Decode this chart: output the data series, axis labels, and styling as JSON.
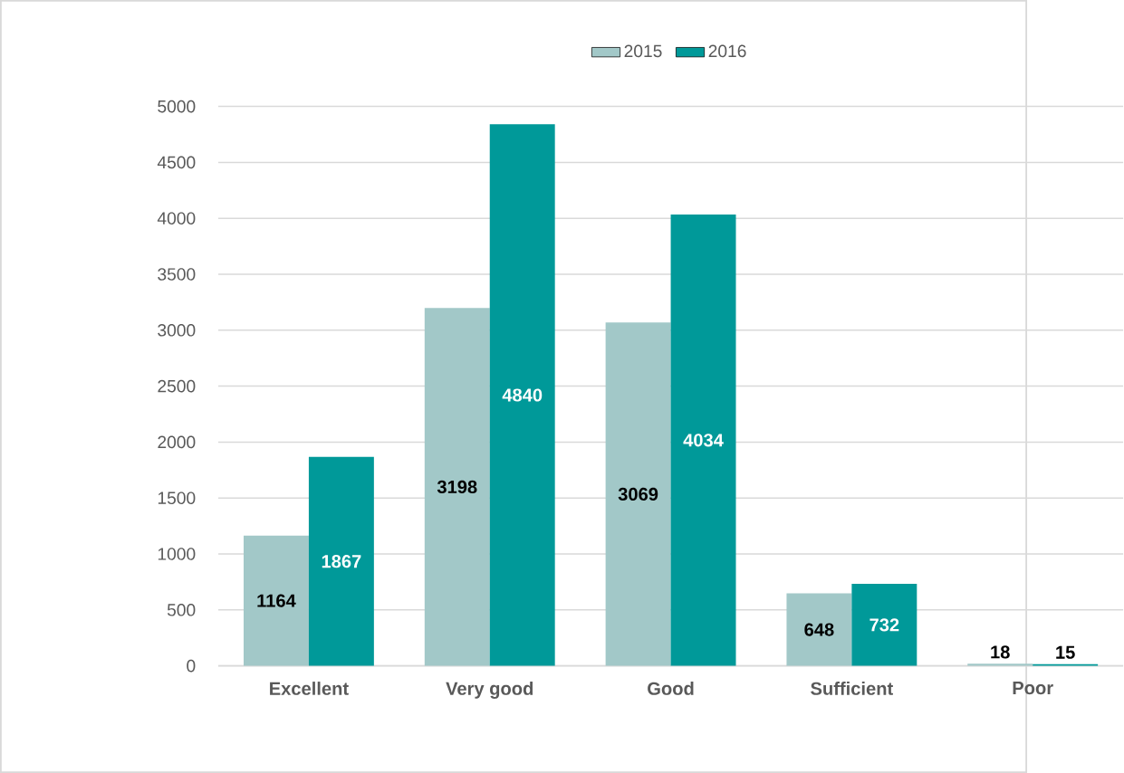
{
  "chart_data": {
    "type": "bar",
    "categories": [
      "Excellent",
      "Very good",
      "Good",
      "Sufficient",
      "Poor"
    ],
    "series": [
      {
        "name": "2015",
        "color": "#a2c8c8",
        "values": [
          1164,
          3198,
          3069,
          648,
          18
        ]
      },
      {
        "name": "2016",
        "color": "#009999",
        "values": [
          1867,
          4840,
          4034,
          732,
          15
        ]
      }
    ],
    "ylim": [
      0,
      5000
    ],
    "yticks": [
      0,
      500,
      1000,
      1500,
      2000,
      2500,
      3000,
      3500,
      4000,
      4500,
      5000
    ],
    "grid": "y",
    "legend": "top",
    "data_labels": true
  }
}
